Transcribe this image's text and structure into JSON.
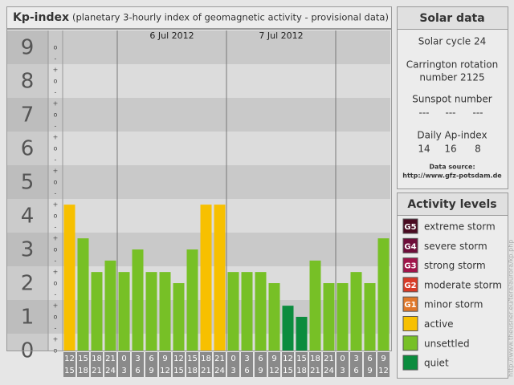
{
  "chart_data": {
    "type": "bar",
    "title": "Kp-index",
    "subtitle": "(planetary 3-hourly index of geomagnetic activity - provisional data)",
    "x_start": [
      12,
      15,
      18,
      21,
      0,
      3,
      6,
      9,
      12,
      15,
      18,
      21,
      0,
      3,
      6,
      9,
      12,
      15,
      18,
      21,
      0,
      3,
      6,
      9
    ],
    "x_end": [
      15,
      18,
      21,
      24,
      3,
      6,
      9,
      12,
      15,
      18,
      21,
      24,
      3,
      6,
      9,
      12,
      15,
      18,
      21,
      24,
      3,
      6,
      9,
      12
    ],
    "day_labels": [
      "6 Jul 2012",
      "7 Jul 2012"
    ],
    "values": [
      4.33,
      3.33,
      2.33,
      2.67,
      2.33,
      3,
      2.33,
      2.33,
      2,
      3,
      4.33,
      4.33,
      2.33,
      2.33,
      2.33,
      2,
      1.33,
      1,
      2.67,
      2,
      2,
      2.33,
      2,
      3.33
    ],
    "colors": [
      "#f7c000",
      "#77c026",
      "#77c026",
      "#77c026",
      "#77c026",
      "#77c026",
      "#77c026",
      "#77c026",
      "#77c026",
      "#77c026",
      "#f7c000",
      "#f7c000",
      "#77c026",
      "#77c026",
      "#77c026",
      "#77c026",
      "#0b8c3e",
      "#0b8c3e",
      "#77c026",
      "#77c026",
      "#77c026",
      "#77c026",
      "#77c026",
      "#77c026"
    ],
    "ylim": [
      0,
      9.5
    ],
    "yticks": [
      0,
      1,
      2,
      3,
      4,
      5,
      6,
      7,
      8,
      9
    ],
    "minor_ticks": [
      {
        "value": 0,
        "label": "o"
      },
      {
        "value": 0.33,
        "label": "+"
      },
      {
        "value": 0.67,
        "label": "-"
      },
      {
        "value": 1,
        "label": "o"
      },
      {
        "value": 1.33,
        "label": "+"
      },
      {
        "value": 1.67,
        "label": "-"
      },
      {
        "value": 2,
        "label": "o"
      },
      {
        "value": 2.33,
        "label": "+"
      },
      {
        "value": 2.67,
        "label": "-"
      },
      {
        "value": 3,
        "label": "o"
      },
      {
        "value": 3.33,
        "label": "+"
      },
      {
        "value": 3.67,
        "label": "-"
      },
      {
        "value": 4,
        "label": "o"
      },
      {
        "value": 4.33,
        "label": "+"
      },
      {
        "value": 4.67,
        "label": "-"
      },
      {
        "value": 5,
        "label": "o"
      },
      {
        "value": 5.33,
        "label": "+"
      },
      {
        "value": 5.67,
        "label": "-"
      },
      {
        "value": 6,
        "label": "o"
      },
      {
        "value": 6.33,
        "label": "+"
      },
      {
        "value": 6.67,
        "label": "-"
      },
      {
        "value": 7,
        "label": "o"
      },
      {
        "value": 7.33,
        "label": "+"
      },
      {
        "value": 7.67,
        "label": "-"
      },
      {
        "value": 8,
        "label": "o"
      },
      {
        "value": 8.33,
        "label": "+"
      },
      {
        "value": 8.67,
        "label": "-"
      },
      {
        "value": 9,
        "label": "o"
      }
    ]
  },
  "solar_data": {
    "title": "Solar data",
    "cycle": "Solar cycle 24",
    "carrington_1": "Carrington rotation",
    "carrington_2": "number 2125",
    "sunspot_title": "Sunspot number",
    "sunspot_number": [
      "---",
      "---",
      "---"
    ],
    "ap_title": "Daily Ap-index",
    "ap_index": [
      14,
      16,
      8
    ],
    "source_title": "Data source:",
    "source_url": "http://www.gfz-potsdam.de"
  },
  "activity_levels": {
    "title": "Activity levels",
    "items": [
      {
        "badge": "G5",
        "label": "extreme storm",
        "color": "#4a0c22"
      },
      {
        "badge": "G4",
        "label": "severe storm",
        "color": "#6e0e3a"
      },
      {
        "badge": "G3",
        "label": "strong storm",
        "color": "#a0154a"
      },
      {
        "badge": "G2",
        "label": "moderate storm",
        "color": "#d83a27"
      },
      {
        "badge": "G1",
        "label": "minor storm",
        "color": "#e0782a"
      },
      {
        "label": "active",
        "color": "#f7c000"
      },
      {
        "label": "unsettled",
        "color": "#77c026"
      },
      {
        "label": "quiet",
        "color": "#0b8c3e"
      }
    ]
  },
  "footer_url": "http://www.theusner.eu/tera/aurora/kp.php"
}
